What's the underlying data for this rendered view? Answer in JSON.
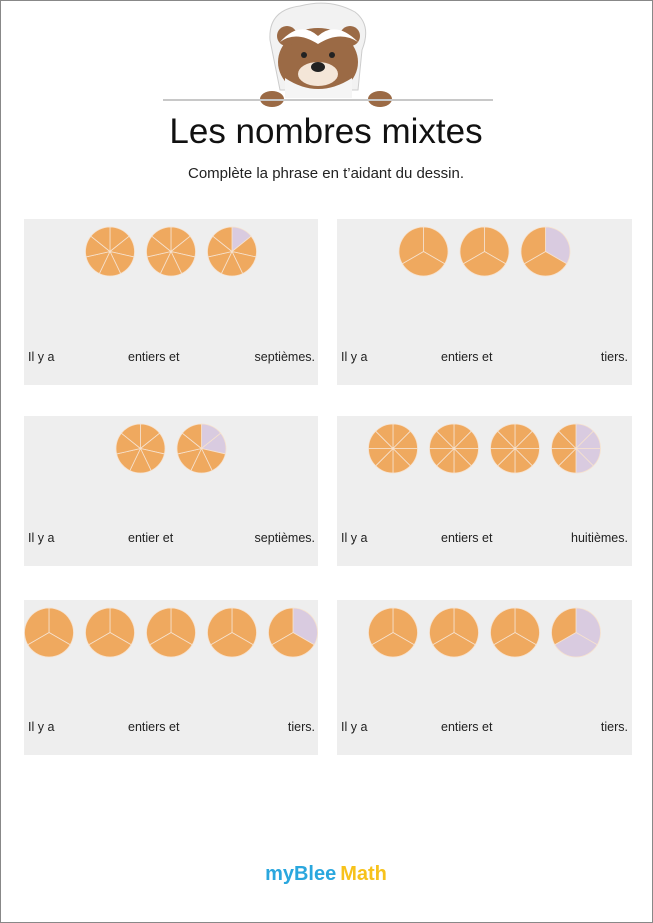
{
  "header": {
    "title": "Les nombres mixtes",
    "instruction": "Complète la phrase en t’aidant du dessin."
  },
  "cards": [
    {
      "start": "Il y a",
      "middle": "entiers et",
      "end": "septièmes.",
      "pies": [
        {
          "parts": 7,
          "shaded": 7
        },
        {
          "parts": 7,
          "shaded": 7
        },
        {
          "parts": 7,
          "shaded": 6
        }
      ]
    },
    {
      "start": "Il y a",
      "middle": "entiers et",
      "end": "tiers.",
      "pies": [
        {
          "parts": 3,
          "shaded": 3
        },
        {
          "parts": 3,
          "shaded": 3
        },
        {
          "parts": 3,
          "shaded": 2
        }
      ]
    },
    {
      "start": "Il y a",
      "middle": "entier et",
      "end": "septièmes.",
      "pies": [
        {
          "parts": 7,
          "shaded": 7
        },
        {
          "parts": 7,
          "shaded": 5
        }
      ]
    },
    {
      "start": "Il y a",
      "middle": "entiers et",
      "end": "huitièmes.",
      "pies": [
        {
          "parts": 8,
          "shaded": 8
        },
        {
          "parts": 8,
          "shaded": 8
        },
        {
          "parts": 8,
          "shaded": 8
        },
        {
          "parts": 8,
          "shaded": 4
        }
      ]
    },
    {
      "start": "Il y a",
      "middle": "entiers et",
      "end": "tiers.",
      "pies": [
        {
          "parts": 3,
          "shaded": 3
        },
        {
          "parts": 3,
          "shaded": 3
        },
        {
          "parts": 3,
          "shaded": 3
        },
        {
          "parts": 3,
          "shaded": 3
        },
        {
          "parts": 3,
          "shaded": 2
        }
      ]
    },
    {
      "start": "Il y a",
      "middle": "entiers et",
      "end": "tiers.",
      "pies": [
        {
          "parts": 3,
          "shaded": 3
        },
        {
          "parts": 3,
          "shaded": 3
        },
        {
          "parts": 3,
          "shaded": 3
        },
        {
          "parts": 3,
          "shaded": 1
        }
      ]
    }
  ],
  "footer": {
    "brand": "myBlee",
    "product": "Math"
  }
}
